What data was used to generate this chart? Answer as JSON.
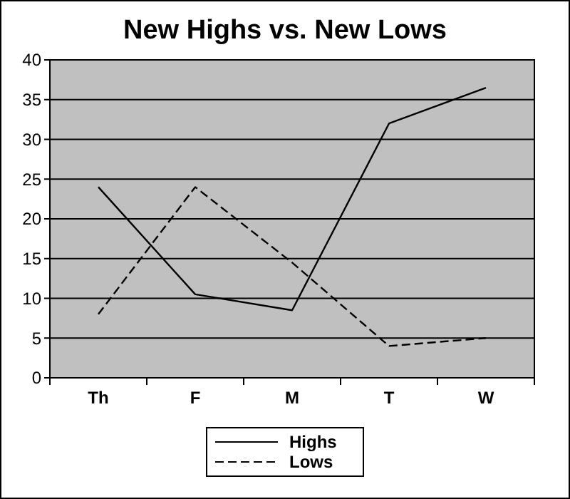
{
  "chart_data": {
    "type": "line",
    "title": "New Highs vs. New Lows",
    "categories": [
      "Th",
      "F",
      "M",
      "T",
      "W"
    ],
    "series": [
      {
        "name": "Highs",
        "color": "#000000",
        "line_style": "solid",
        "values": [
          24,
          10.5,
          8.5,
          32,
          36.5
        ]
      },
      {
        "name": "Lows",
        "color": "#000000",
        "line_style": "dashed",
        "values": [
          8,
          24,
          14.5,
          4,
          5
        ]
      }
    ],
    "ylim": [
      0,
      40
    ],
    "yticks": [
      0,
      5,
      10,
      15,
      20,
      25,
      30,
      35,
      40
    ],
    "grid": "y",
    "legend": "bottom"
  }
}
